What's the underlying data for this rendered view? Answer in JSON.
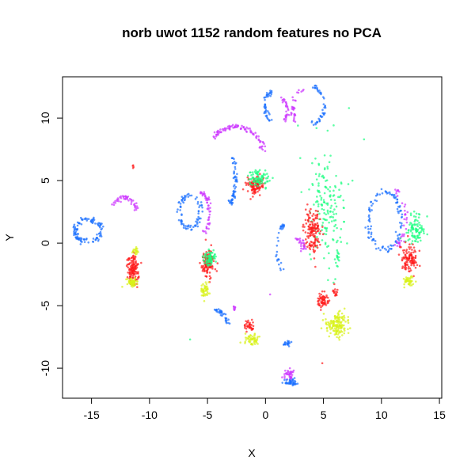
{
  "chart_data": {
    "type": "scatter",
    "title": "norb uwot 1152 random features no PCA",
    "xlabel": "X",
    "ylabel": "Y",
    "xlim": [
      -17.5,
      15.2
    ],
    "ylim": [
      -12.4,
      13.3
    ],
    "x_ticks": [
      -15,
      -10,
      -5,
      0,
      5,
      10,
      15
    ],
    "y_ticks": [
      -10,
      -5,
      0,
      5,
      10
    ],
    "grid": false,
    "legend": "none",
    "colors": {
      "blue": "#1a6fff",
      "magenta": "#cc33ff",
      "red": "#ff1a1a",
      "green": "#1aff80",
      "yellow": "#d9f21a"
    },
    "clusters": [
      {
        "color": "blue",
        "shape": "ring",
        "cx": -15.3,
        "cy": 1.0,
        "rx": 1.1,
        "ry": 0.9,
        "n": 110,
        "jitter": 0.12
      },
      {
        "color": "magenta",
        "shape": "arc",
        "cx": -12.2,
        "cy": 2.8,
        "rx": 1.0,
        "ry": 0.9,
        "a0": -0.3,
        "a1": 2.8,
        "n": 45,
        "jitter": 0.1
      },
      {
        "color": "red",
        "shape": "blob",
        "cx": -11.4,
        "cy": -2.1,
        "rx": 0.45,
        "ry": 1.3,
        "n": 130
      },
      {
        "color": "yellow",
        "shape": "blob",
        "cx": -11.5,
        "cy": -3.1,
        "rx": 0.5,
        "ry": 0.35,
        "n": 60
      },
      {
        "color": "yellow",
        "shape": "blob",
        "cx": -11.2,
        "cy": -0.6,
        "rx": 0.25,
        "ry": 0.3,
        "n": 20
      },
      {
        "color": "red",
        "shape": "blob",
        "cx": -11.4,
        "cy": 6.0,
        "rx": 0.06,
        "ry": 0.25,
        "n": 4
      },
      {
        "color": "blue",
        "shape": "ring",
        "cx": -6.5,
        "cy": 2.5,
        "rx": 0.9,
        "ry": 1.3,
        "n": 80,
        "jitter": 0.12
      },
      {
        "color": "magenta",
        "shape": "arc",
        "cx": -5.6,
        "cy": 2.4,
        "rx": 0.8,
        "ry": 1.6,
        "a0": -1.5,
        "a1": 1.5,
        "n": 50,
        "jitter": 0.1
      },
      {
        "color": "red",
        "shape": "blob",
        "cx": -5.0,
        "cy": -1.6,
        "rx": 0.55,
        "ry": 1.1,
        "n": 120
      },
      {
        "color": "green",
        "shape": "blob",
        "cx": -4.8,
        "cy": -1.2,
        "rx": 0.5,
        "ry": 0.55,
        "n": 70
      },
      {
        "color": "yellow",
        "shape": "blob",
        "cx": -5.2,
        "cy": -3.8,
        "rx": 0.35,
        "ry": 0.55,
        "n": 45
      },
      {
        "color": "magenta",
        "shape": "arc",
        "cx": -2.6,
        "cy": 6.5,
        "rx": 2.6,
        "ry": 2.8,
        "a0": 0.3,
        "a1": 2.4,
        "n": 90,
        "jitter": 0.1
      },
      {
        "color": "blue",
        "shape": "arc",
        "cx": -3.3,
        "cy": 5.2,
        "rx": 0.7,
        "ry": 2.2,
        "a0": -1.2,
        "a1": 0.8,
        "n": 60,
        "jitter": 0.1
      },
      {
        "color": "red",
        "shape": "blob",
        "cx": -0.9,
        "cy": 4.6,
        "rx": 0.8,
        "ry": 0.8,
        "n": 120
      },
      {
        "color": "green",
        "shape": "blob",
        "cx": -0.6,
        "cy": 5.2,
        "rx": 0.9,
        "ry": 0.7,
        "n": 80
      },
      {
        "color": "blue",
        "shape": "arc",
        "cx": 0.6,
        "cy": 11.0,
        "rx": 0.6,
        "ry": 1.2,
        "a0": 1.6,
        "a1": 4.4,
        "n": 45,
        "jitter": 0.1
      },
      {
        "color": "magenta",
        "shape": "arc",
        "cx": 1.2,
        "cy": 10.6,
        "rx": 0.7,
        "ry": 1.0,
        "a0": -1.0,
        "a1": 1.2,
        "n": 30,
        "jitter": 0.1
      },
      {
        "color": "blue",
        "shape": "arc",
        "cx": 3.9,
        "cy": 11.0,
        "rx": 1.2,
        "ry": 1.5,
        "a0": -1.4,
        "a1": 1.4,
        "n": 45,
        "jitter": 0.1
      },
      {
        "color": "magenta",
        "shape": "arc",
        "cx": 3.3,
        "cy": 10.5,
        "rx": 0.9,
        "ry": 1.8,
        "a0": 1.7,
        "a1": 3.6,
        "n": 30,
        "jitter": 0.1
      },
      {
        "color": "green",
        "shape": "blob",
        "cx": 5.3,
        "cy": 2.5,
        "rx": 1.6,
        "ry": 4.5,
        "n": 160
      },
      {
        "color": "red",
        "shape": "blob",
        "cx": 4.0,
        "cy": 1.0,
        "rx": 0.7,
        "ry": 1.9,
        "n": 150
      },
      {
        "color": "blue",
        "shape": "arc",
        "cx": 1.6,
        "cy": -0.4,
        "rx": 0.6,
        "ry": 1.8,
        "a0": 1.6,
        "a1": 4.6,
        "n": 30,
        "jitter": 0.1
      },
      {
        "color": "magenta",
        "shape": "arc",
        "cx": 2.4,
        "cy": -0.3,
        "rx": 0.9,
        "ry": 0.7,
        "a0": -0.4,
        "a1": 1.4,
        "n": 25,
        "jitter": 0.1
      },
      {
        "color": "red",
        "shape": "blob",
        "cx": 5.0,
        "cy": -4.6,
        "rx": 0.5,
        "ry": 0.6,
        "n": 60
      },
      {
        "color": "red",
        "shape": "blob",
        "cx": 6.0,
        "cy": -3.8,
        "rx": 0.2,
        "ry": 0.5,
        "n": 15
      },
      {
        "color": "yellow",
        "shape": "blob",
        "cx": 6.2,
        "cy": -6.6,
        "rx": 1.0,
        "ry": 1.0,
        "n": 150
      },
      {
        "color": "green",
        "shape": "blob",
        "cx": 6.2,
        "cy": -1.2,
        "rx": 0.2,
        "ry": 0.6,
        "n": 15
      },
      {
        "color": "blue",
        "shape": "ring",
        "cx": 10.3,
        "cy": 1.8,
        "rx": 1.4,
        "ry": 2.3,
        "n": 110,
        "jitter": 0.12
      },
      {
        "color": "magenta",
        "shape": "arc",
        "cx": 10.9,
        "cy": 2.0,
        "rx": 1.2,
        "ry": 2.3,
        "a0": -1.2,
        "a1": 1.3,
        "n": 40,
        "jitter": 0.1
      },
      {
        "color": "green",
        "shape": "blob",
        "cx": 12.9,
        "cy": 1.1,
        "rx": 0.8,
        "ry": 1.2,
        "n": 90
      },
      {
        "color": "red",
        "shape": "blob",
        "cx": 12.4,
        "cy": -1.3,
        "rx": 0.7,
        "ry": 1.1,
        "n": 110
      },
      {
        "color": "yellow",
        "shape": "blob",
        "cx": 12.4,
        "cy": -3.0,
        "rx": 0.5,
        "ry": 0.4,
        "n": 45
      },
      {
        "color": "blue",
        "shape": "arc",
        "cx": -5.3,
        "cy": -7.5,
        "rx": 2.3,
        "ry": 2.5,
        "a0": 0.4,
        "a1": 1.1,
        "n": 35,
        "jitter": 0.1
      },
      {
        "color": "magenta",
        "shape": "blob",
        "cx": -2.7,
        "cy": -5.2,
        "rx": 0.15,
        "ry": 0.3,
        "n": 8
      },
      {
        "color": "red",
        "shape": "blob",
        "cx": -1.3,
        "cy": -6.6,
        "rx": 0.5,
        "ry": 0.45,
        "n": 35
      },
      {
        "color": "yellow",
        "shape": "blob",
        "cx": -1.2,
        "cy": -7.7,
        "rx": 0.6,
        "ry": 0.4,
        "n": 55
      },
      {
        "color": "blue",
        "shape": "blob",
        "cx": 1.9,
        "cy": -8.0,
        "rx": 0.4,
        "ry": 0.2,
        "n": 20
      },
      {
        "color": "magenta",
        "shape": "blob",
        "cx": 2.0,
        "cy": -10.5,
        "rx": 0.6,
        "ry": 0.35,
        "n": 35
      },
      {
        "color": "blue",
        "shape": "blob",
        "cx": 2.2,
        "cy": -11.1,
        "rx": 0.7,
        "ry": 0.3,
        "n": 40
      }
    ],
    "outliers": [
      {
        "x": 7.2,
        "y": 10.8,
        "color": "green"
      },
      {
        "x": 8.5,
        "y": 8.3,
        "color": "green"
      },
      {
        "x": 7.5,
        "y": 5.0,
        "color": "green"
      },
      {
        "x": 3.0,
        "y": 6.8,
        "color": "green"
      },
      {
        "x": -6.5,
        "y": -7.7,
        "color": "green"
      },
      {
        "x": 4.9,
        "y": -9.6,
        "color": "red"
      },
      {
        "x": 0.4,
        "y": -4.1,
        "color": "magenta"
      },
      {
        "x": 2.8,
        "y": 9.4,
        "color": "green"
      },
      {
        "x": 4.4,
        "y": 9.2,
        "color": "green"
      }
    ]
  }
}
